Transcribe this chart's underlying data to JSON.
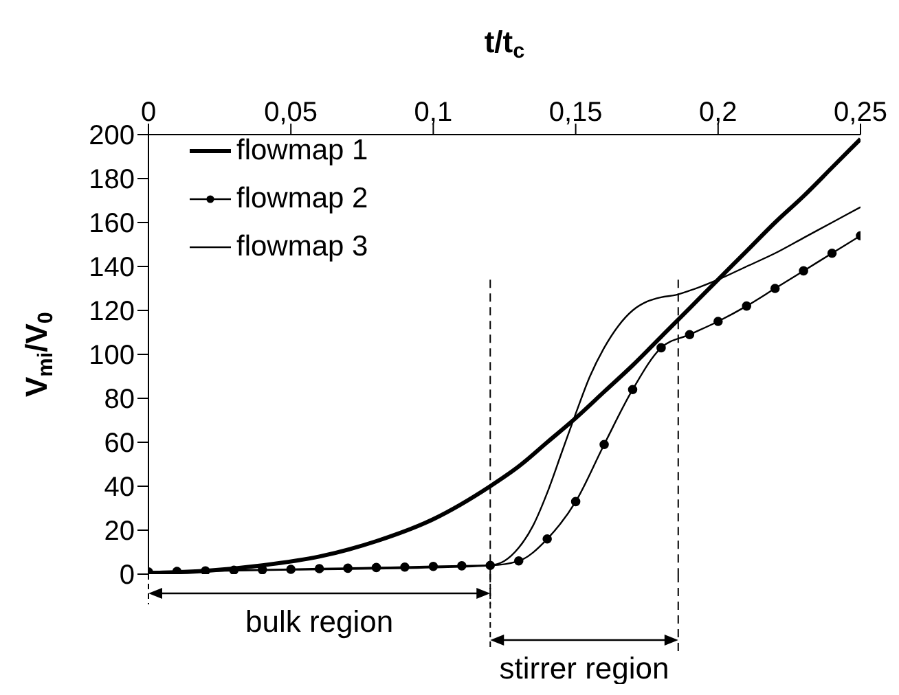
{
  "chart_data": {
    "type": "line",
    "xlabel": "t/t$_{c}$",
    "ylabel": "V$_{mi}$/V$_{0}$",
    "xlim": [
      0,
      0.25
    ],
    "xticks": [
      0,
      {
        "value": 0.05,
        "label": "0,05"
      },
      {
        "value": 0.1,
        "label": "0,1"
      },
      {
        "value": 0.15,
        "label": "0,15"
      },
      {
        "value": 0.2,
        "label": "0,2"
      },
      {
        "value": 0.25,
        "label": "0,25"
      }
    ],
    "ylim": [
      0,
      200
    ],
    "yticks": [
      0,
      20,
      40,
      60,
      80,
      100,
      120,
      140,
      160,
      180,
      200
    ],
    "grid": false,
    "legend": "top left",
    "series": [
      {
        "name": "flowmap 1",
        "color": "#000000",
        "marker": "none",
        "x": [
          0,
          0.02,
          0.04,
          0.06,
          0.08,
          0.1,
          0.12,
          0.13,
          0.14,
          0.15,
          0.16,
          0.17,
          0.18,
          0.19,
          0.2,
          0.21,
          0.22,
          0.23,
          0.24,
          0.25
        ],
        "values": [
          0.5,
          1.5,
          4,
          8,
          15,
          25,
          40,
          49,
          60,
          71,
          83,
          95,
          108,
          121,
          134,
          147,
          160,
          172,
          185,
          198
        ]
      },
      {
        "name": "flowmap 2",
        "color": "#000000",
        "marker": "circle",
        "x": [
          0,
          0.01,
          0.02,
          0.03,
          0.04,
          0.05,
          0.06,
          0.07,
          0.08,
          0.09,
          0.1,
          0.11,
          0.12,
          0.13,
          0.14,
          0.15,
          0.16,
          0.17,
          0.18,
          0.19,
          0.2,
          0.21,
          0.22,
          0.23,
          0.24,
          0.25
        ],
        "values": [
          1,
          1.2,
          1.5,
          1.8,
          2,
          2.2,
          2.5,
          2.7,
          3,
          3.2,
          3.5,
          3.8,
          4,
          6,
          16,
          33,
          59,
          84,
          103,
          109,
          115,
          122,
          130,
          138,
          146,
          154
        ]
      },
      {
        "name": "flowmap 3",
        "color": "#000000",
        "marker": "none",
        "x": [
          0,
          0.05,
          0.1,
          0.12,
          0.125,
          0.13,
          0.135,
          0.14,
          0.145,
          0.15,
          0.155,
          0.16,
          0.165,
          0.17,
          0.175,
          0.18,
          0.185,
          0.19,
          0.2,
          0.21,
          0.22,
          0.23,
          0.24,
          0.25
        ],
        "values": [
          1,
          2,
          3,
          4,
          6,
          12,
          22,
          37,
          55,
          73,
          90,
          103,
          113,
          120,
          124,
          126,
          127,
          129,
          134,
          140,
          146,
          153,
          160,
          167
        ]
      }
    ],
    "ref_lines": [
      {
        "axis": "x",
        "value": 0.12,
        "line_style": "dashed"
      },
      {
        "axis": "x",
        "value": 0.186,
        "line_style": "dashed"
      }
    ],
    "annotations": [
      "bulk region",
      "stirrer region"
    ]
  }
}
